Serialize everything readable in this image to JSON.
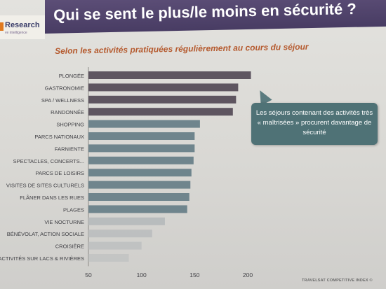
{
  "logo": {
    "name": "Research",
    "tagline": "ve intelligence"
  },
  "header": {
    "title": "Qui se sent le plus/le moins en sécurité ?"
  },
  "subtitle": "Selon les activités pratiquées régulièrement au cours du séjour",
  "callout": {
    "text": "Les séjours contenant des activités très « maîtrisées » procurent davantage de sécurité"
  },
  "footer": "TRAVELSAT COMPETITIVE INDEX ©",
  "colors": {
    "title_band": "#4f4269",
    "subtitle": "#b55a2e",
    "callout": "#4f7276",
    "bar_dark": "#5e5560",
    "bar_mid": "#6f858d",
    "bar_light": "#b8bcbd"
  },
  "chart_data": {
    "type": "bar",
    "orientation": "horizontal",
    "categories": [
      "PLONGÉE",
      "GASTRONOMIE",
      "SPA / WELLNESS",
      "RANDONNÉE",
      "SHOPPING",
      "PARCS NATIONAUX",
      "FARNIENTE",
      "SPECTACLES, CONCERTS...",
      "PARCS DE LOISIRS",
      "VISITES DE SITES CULTURELS",
      "FLÂNER DANS LES RUES",
      "PLAGES",
      "VIE NOCTURNE",
      "BÉNÉVOLAT, ACTION SOCIALE",
      "CROISIÈRE",
      "ACTIVITÉS SUR LACS & RIVIÈRES"
    ],
    "values": [
      203,
      191,
      189,
      186,
      155,
      150,
      150,
      149,
      147,
      146,
      145,
      143,
      122,
      110,
      100,
      88
    ],
    "xlim": [
      50,
      200
    ],
    "xticks": [
      "50",
      "100",
      "150",
      "200"
    ],
    "title": "",
    "xlabel": "",
    "ylabel": ""
  }
}
